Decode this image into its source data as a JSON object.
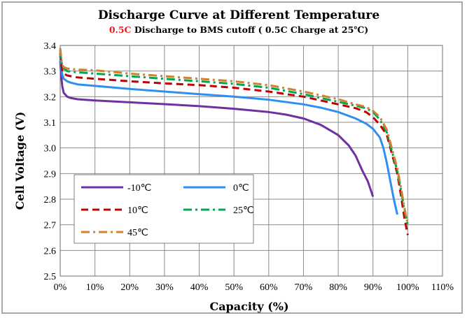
{
  "chart_data": {
    "type": "line",
    "title": "Discharge Curve at Different Temperature",
    "subtitle": {
      "highlight": "0.5C",
      "text": " Discharge to BMS cutoff  ( 0.5C  Charge at 25℃)",
      "highlight_color": "#e02020"
    },
    "xlabel": "Capacity (%)",
    "ylabel": "Cell  Voltage (V)",
    "xlim": [
      0,
      110
    ],
    "ylim": [
      2.5,
      3.4
    ],
    "xticks": [
      "0%",
      "10%",
      "20%",
      "30%",
      "40%",
      "50%",
      "60%",
      "70%",
      "80%",
      "90%",
      "100%",
      "110%"
    ],
    "xtick_values": [
      0,
      10,
      20,
      30,
      40,
      50,
      60,
      70,
      80,
      90,
      100,
      110
    ],
    "yticks": [
      "2.5",
      "2.6",
      "2.7",
      "2.8",
      "2.9",
      "3.0",
      "3.1",
      "3.2",
      "3.3",
      "3.4"
    ],
    "ytick_values": [
      2.5,
      2.6,
      2.7,
      2.8,
      2.9,
      3.0,
      3.1,
      3.2,
      3.3,
      3.4
    ],
    "grid": true,
    "legend_position": "lower-left",
    "series": [
      {
        "name": "-10℃",
        "color": "#7030a0",
        "dash": "solid",
        "x": [
          0,
          0.3,
          0.6,
          1,
          2,
          3,
          5,
          10,
          20,
          30,
          40,
          50,
          60,
          65,
          70,
          75,
          80,
          83,
          85,
          87,
          88.5,
          90
        ],
        "y": [
          3.34,
          3.28,
          3.24,
          3.215,
          3.2,
          3.195,
          3.19,
          3.185,
          3.178,
          3.171,
          3.163,
          3.153,
          3.14,
          3.13,
          3.115,
          3.09,
          3.05,
          3.01,
          2.97,
          2.91,
          2.87,
          2.81
        ]
      },
      {
        "name": "0℃",
        "color": "#2e8ff0",
        "dash": "solid",
        "x": [
          0,
          0.3,
          0.6,
          1,
          2,
          3,
          5,
          10,
          20,
          30,
          40,
          50,
          60,
          70,
          75,
          80,
          85,
          88,
          90,
          92,
          93,
          94,
          95,
          96,
          97
        ],
        "y": [
          3.36,
          3.31,
          3.285,
          3.27,
          3.26,
          3.255,
          3.248,
          3.242,
          3.23,
          3.22,
          3.21,
          3.2,
          3.188,
          3.17,
          3.157,
          3.14,
          3.115,
          3.095,
          3.075,
          3.04,
          3.0,
          2.94,
          2.87,
          2.8,
          2.74
        ]
      },
      {
        "name": "10℃",
        "color": "#c00000",
        "dash": "dash",
        "x": [
          0,
          0.3,
          0.6,
          1,
          2,
          3,
          5,
          10,
          20,
          30,
          40,
          50,
          60,
          70,
          80,
          85,
          88,
          90,
          92,
          94,
          95,
          96,
          97,
          98,
          99,
          100
        ],
        "y": [
          3.37,
          3.33,
          3.3,
          3.29,
          3.283,
          3.28,
          3.275,
          3.27,
          3.26,
          3.252,
          3.245,
          3.235,
          3.22,
          3.2,
          3.17,
          3.155,
          3.14,
          3.12,
          3.09,
          3.05,
          3.0,
          2.95,
          2.9,
          2.82,
          2.73,
          2.66
        ]
      },
      {
        "name": "25℃",
        "color": "#00a650",
        "dash": "dashdot",
        "x": [
          0,
          0.3,
          0.6,
          1,
          2,
          3,
          5,
          10,
          20,
          30,
          40,
          50,
          60,
          70,
          80,
          85,
          88,
          90,
          92,
          94,
          95,
          96,
          97,
          98,
          99,
          100
        ],
        "y": [
          3.38,
          3.34,
          3.32,
          3.31,
          3.3,
          3.298,
          3.295,
          3.29,
          3.28,
          3.27,
          3.26,
          3.25,
          3.235,
          3.21,
          3.18,
          3.165,
          3.155,
          3.14,
          3.11,
          3.06,
          3.01,
          2.96,
          2.91,
          2.84,
          2.76,
          2.7
        ]
      },
      {
        "name": "45℃",
        "color": "#d08030",
        "dash": "dashdot",
        "x": [
          0,
          0.3,
          0.6,
          1,
          2,
          3,
          5,
          10,
          20,
          30,
          40,
          50,
          60,
          70,
          80,
          85,
          88,
          90,
          92,
          94,
          95,
          96,
          97,
          98,
          99,
          100
        ],
        "y": [
          3.39,
          3.35,
          3.325,
          3.315,
          3.31,
          3.308,
          3.306,
          3.303,
          3.29,
          3.28,
          3.27,
          3.26,
          3.245,
          3.22,
          3.19,
          3.17,
          3.16,
          3.145,
          3.12,
          3.07,
          3.02,
          2.97,
          2.92,
          2.85,
          2.77,
          2.7
        ]
      }
    ]
  }
}
